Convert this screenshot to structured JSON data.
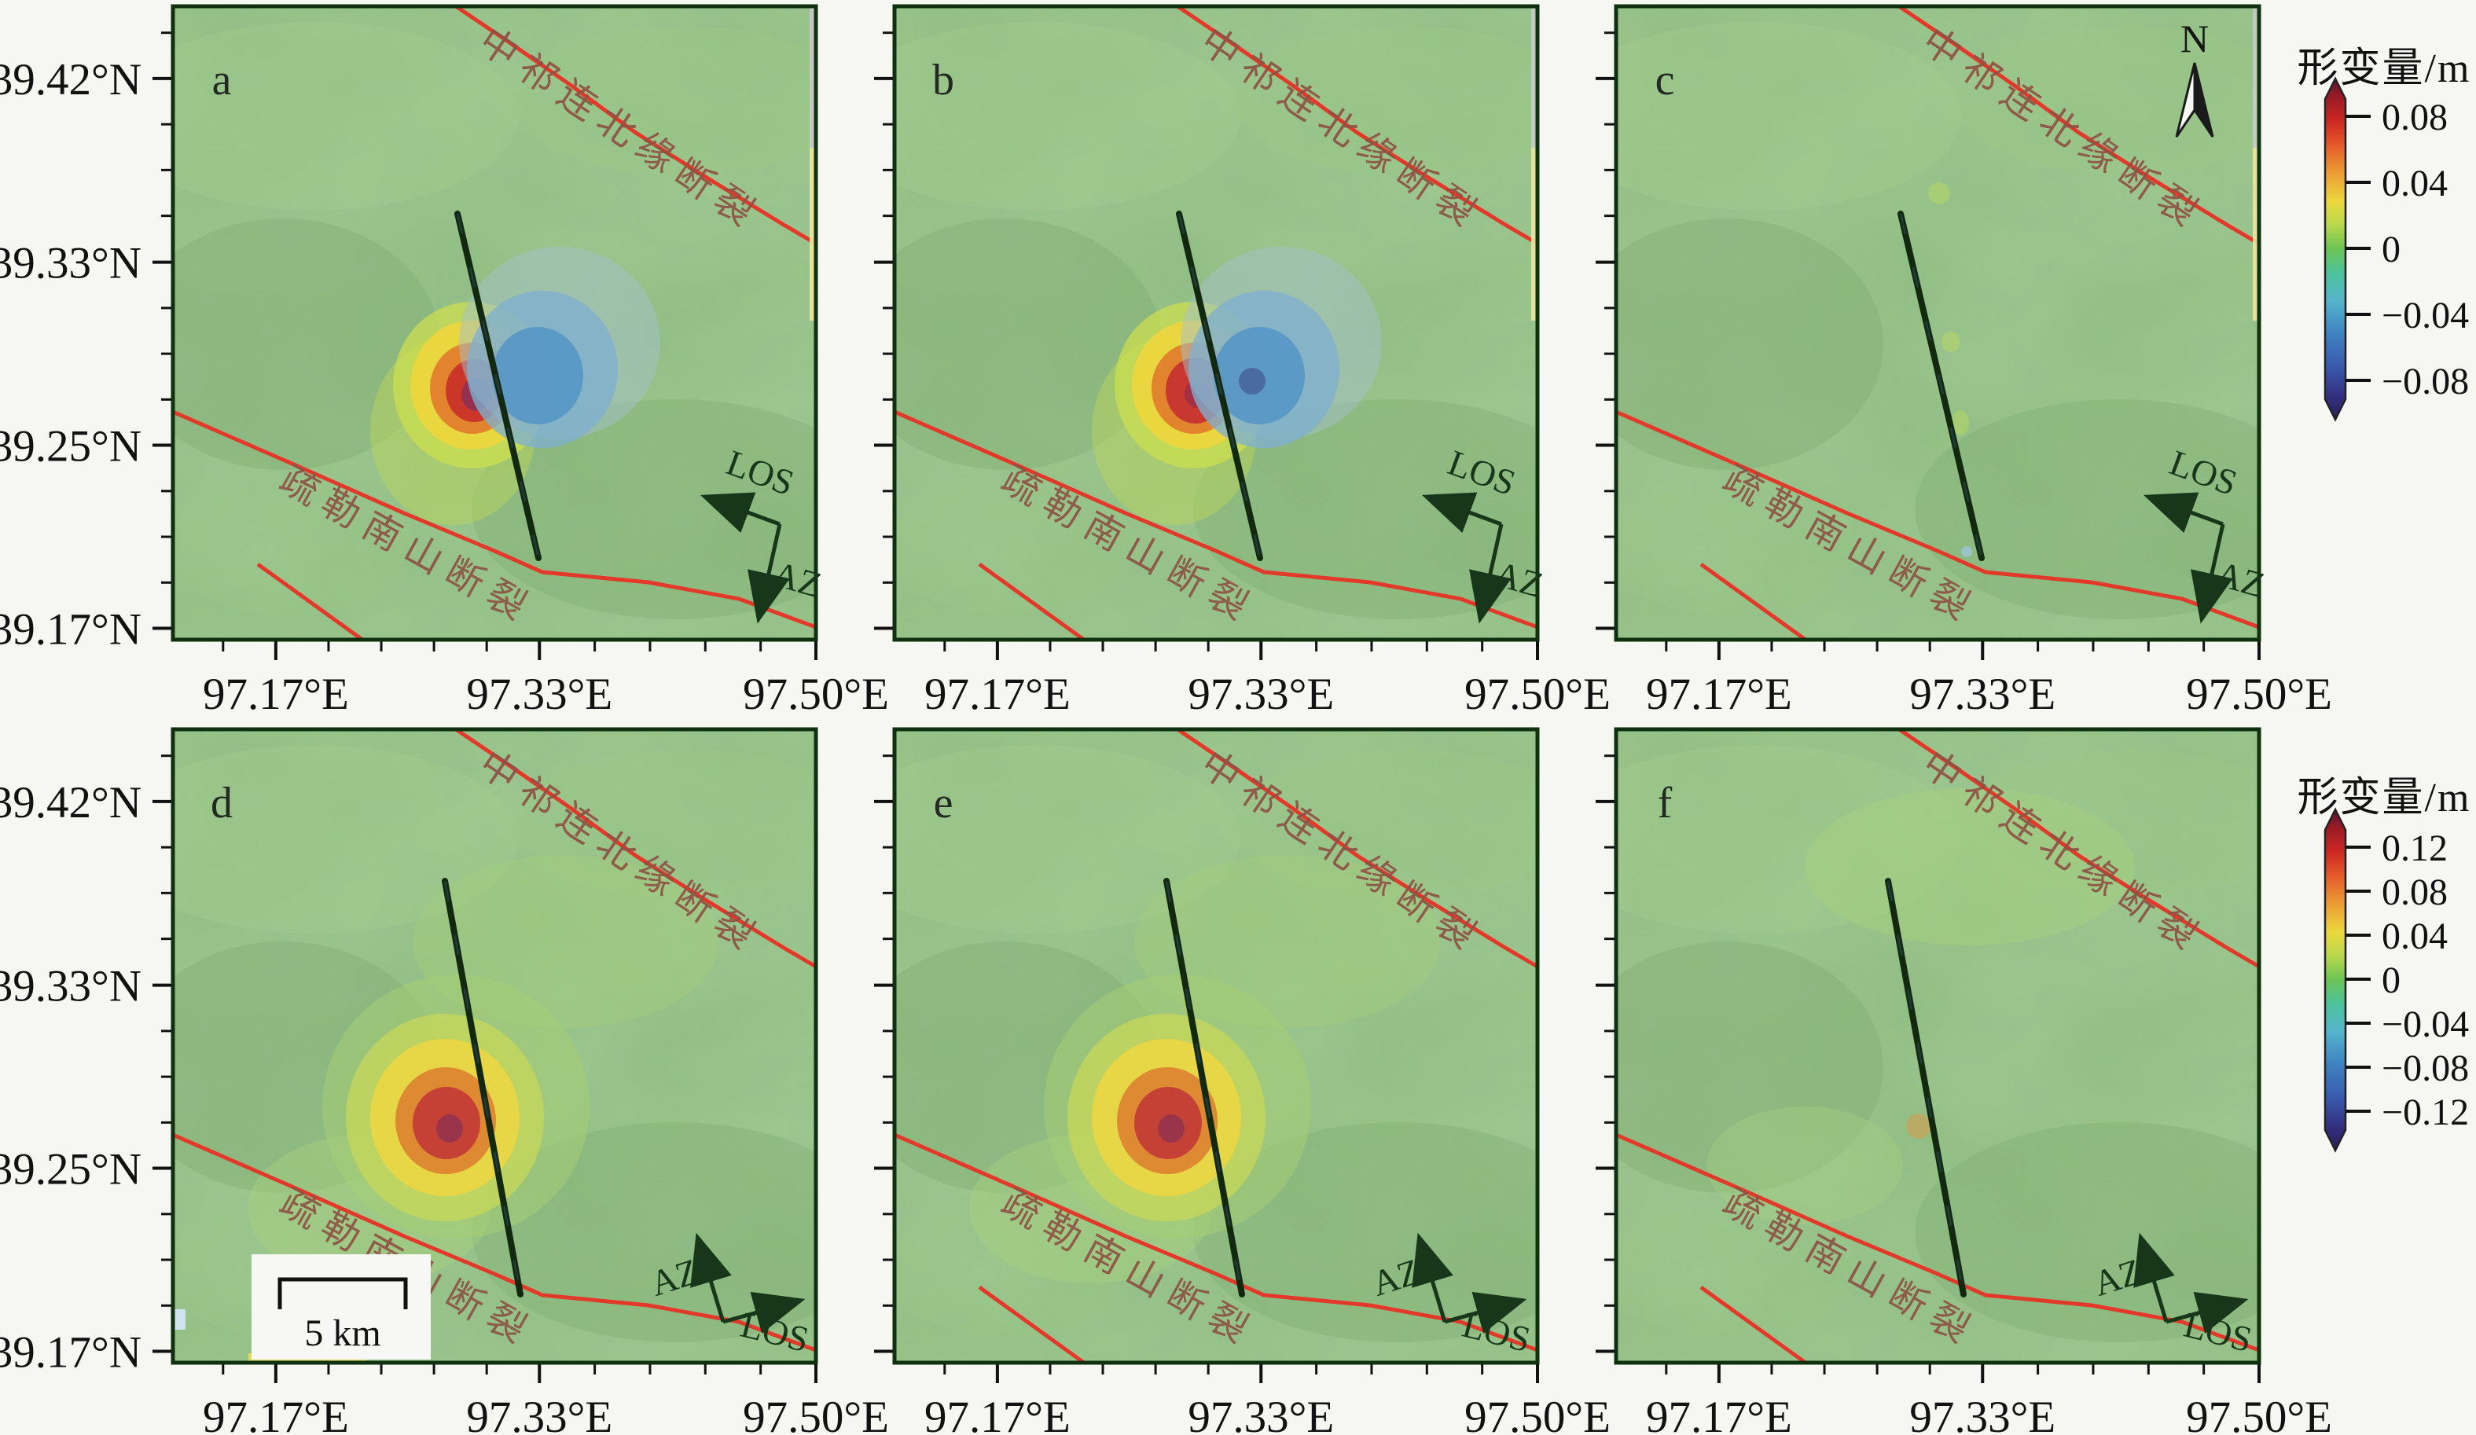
{
  "figure": {
    "kind": "six-panel InSAR surface deformation map figure",
    "background": "#f6f6f3"
  },
  "axes": {
    "lat_tick_labels": [
      "39.42°N",
      "39.33°N",
      "39.25°N",
      "39.17°N"
    ],
    "lon_tick_labels": [
      "97.17°E",
      "97.33°E",
      "97.50°E"
    ]
  },
  "fault_labels": {
    "north_fault": "中祁连北缘断裂",
    "south_fault": "疏勒南山断裂"
  },
  "panels": [
    {
      "letter": "a",
      "blob_set": "insar_pair",
      "arrow_set": "descending",
      "compass": false,
      "scalebar": false
    },
    {
      "letter": "b",
      "blob_set": "insar_pair_b",
      "arrow_set": "descending",
      "compass": false,
      "scalebar": false
    },
    {
      "letter": "c",
      "blob_set": "residual_c",
      "arrow_set": "descending",
      "compass": true,
      "scalebar": false
    },
    {
      "letter": "d",
      "blob_set": "model_lobe",
      "arrow_set": "ascending",
      "compass": false,
      "scalebar": true
    },
    {
      "letter": "e",
      "blob_set": "model_lobe",
      "arrow_set": "ascending",
      "compass": false,
      "scalebar": false
    },
    {
      "letter": "f",
      "blob_set": "residual_f",
      "arrow_set": "ascending",
      "compass": false,
      "scalebar": false
    }
  ],
  "annotations": {
    "los_label": "LOS",
    "az_label": "AZ",
    "north_label": "N",
    "scalebar_label": "5 km"
  },
  "colorbars": [
    {
      "title": "形变量/m",
      "tick_labels": [
        "0.08",
        "0.04",
        "0",
        "−0.04",
        "−0.08"
      ],
      "range_m": [
        -0.08,
        0.08
      ],
      "palette": [
        "#5c1130",
        "#941b25",
        "#cb2622",
        "#e4562a",
        "#ec9733",
        "#ecd83d",
        "#b8d84c",
        "#6ac454",
        "#4cc39b",
        "#55b5cc",
        "#3f86c2",
        "#3a5cb0",
        "#332f80",
        "#27205a"
      ]
    },
    {
      "title": "形变量/m",
      "tick_labels": [
        "0.12",
        "0.08",
        "0.04",
        "0",
        "−0.04",
        "−0.08",
        "−0.12"
      ],
      "range_m": [
        -0.12,
        0.12
      ],
      "palette": [
        "#5c1130",
        "#941b25",
        "#cb2622",
        "#e4562a",
        "#ec9733",
        "#ecd83d",
        "#b8d84c",
        "#6ac454",
        "#4cc39b",
        "#55b5cc",
        "#3f86c2",
        "#3a5cb0",
        "#332f80",
        "#27205a"
      ]
    }
  ],
  "colors": {
    "fault_line": "#e3392a",
    "fault_label_text": "#8d5344",
    "seismogenic_fault": "#12290f",
    "terrain_base": "#8fbe80",
    "annotation_dark_green": "#17361a",
    "axis_text": "#111111"
  },
  "chart_data": {
    "type": "heatmap",
    "description": "Six map panels (a–f) showing surface deformation (形变量, in metres) over longitude/latitude; top row uses a ±0.08 m colour scale, bottom row ±0.12 m. Red faults 中祁连北缘断裂 (NE) and 疏勒南山断裂 (SW) bracket a near N–S black seismogenic fault near 97.30°E.",
    "lon_range": [
      97.1,
      97.5
    ],
    "lat_range": [
      39.16,
      39.45
    ],
    "panels": [
      {
        "id": "a",
        "colorbar_range_m": [
          -0.08,
          0.08
        ],
        "positive_lobe": {
          "peak_m": 0.08,
          "lon": 97.29,
          "lat": 39.28
        },
        "negative_lobe": {
          "peak_m": -0.05,
          "lon": 97.34,
          "lat": 39.29
        }
      },
      {
        "id": "b",
        "colorbar_range_m": [
          -0.08,
          0.08
        ],
        "positive_lobe": {
          "peak_m": 0.08,
          "lon": 97.29,
          "lat": 39.28
        },
        "negative_lobe": {
          "peak_m": -0.06,
          "lon": 97.33,
          "lat": 39.28
        }
      },
      {
        "id": "c",
        "colorbar_range_m": [
          -0.08,
          0.08
        ],
        "signal": "near-zero residual"
      },
      {
        "id": "d",
        "colorbar_range_m": [
          -0.12,
          0.12
        ],
        "positive_lobe": {
          "peak_m": 0.12,
          "lon": 97.27,
          "lat": 39.28
        }
      },
      {
        "id": "e",
        "colorbar_range_m": [
          -0.12,
          0.12
        ],
        "positive_lobe": {
          "peak_m": 0.12,
          "lon": 97.27,
          "lat": 39.28
        }
      },
      {
        "id": "f",
        "colorbar_range_m": [
          -0.12,
          0.12
        ],
        "signal": "near-zero residual"
      }
    ],
    "faults": [
      "中祁连北缘断裂",
      "疏勒南山断裂"
    ],
    "seismogenic_fault": "black N–S line about 97.30°E between 39.20°N and 39.35°N",
    "direction_arrows": {
      "top_row": "LOS points left, AZ points down (descending geometry)",
      "bottom_row": "AZ points up, LOS points right (ascending geometry)"
    },
    "scale_bar": {
      "label": "5 km",
      "panel": "d"
    },
    "north_arrow_panel": "c"
  }
}
